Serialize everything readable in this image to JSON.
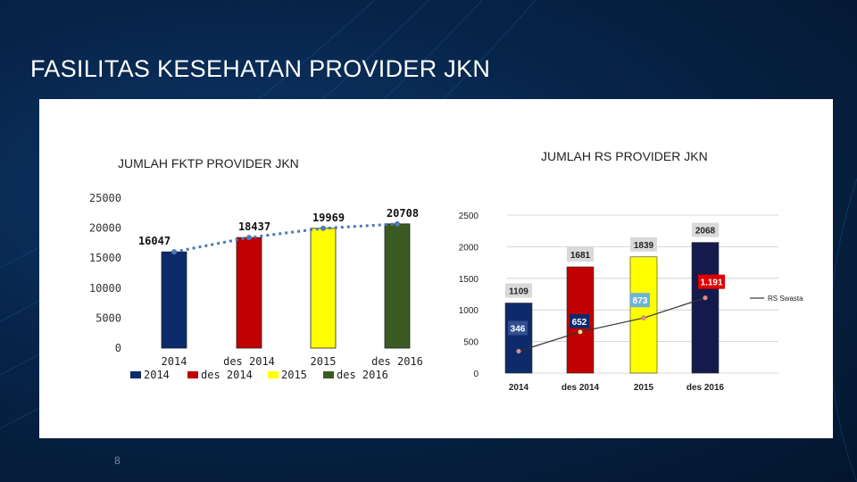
{
  "slide": {
    "title": "FASILITAS KESEHATAN PROVIDER JKN",
    "page_number": "8"
  },
  "colors": {
    "navy": "#0d2a6b",
    "red": "#c00000",
    "yellow": "#ffff00",
    "green": "#3b5a22",
    "dark_navy": "#151a4d",
    "trend_dash": "#4a79b7",
    "label_gray": "#d9d9d9",
    "label_red": "#e00000",
    "label_cyan": "#6fb3d3",
    "label_blue": "#2f4f8f"
  },
  "chart_data": [
    {
      "type": "bar",
      "title": "JUMLAH FKTP PROVIDER JKN",
      "categories": [
        "2014",
        "des 2014",
        "2015",
        "des 2016"
      ],
      "values": [
        16047,
        18437,
        19969,
        20708
      ],
      "data_labels": [
        "16047",
        "18437",
        "19969",
        "20708"
      ],
      "ylim": [
        0,
        25000
      ],
      "yticks": [
        "0",
        "5000",
        "10000",
        "15000",
        "20000",
        "25000"
      ],
      "grid": false,
      "legend_position": "bottom",
      "legend": [
        "2014",
        "des 2014",
        "2015",
        "des 2016"
      ],
      "trend_line": "dashed"
    },
    {
      "type": "bar",
      "title": "JUMLAH RS PROVIDER JKN",
      "categories": [
        "2014",
        "des 2014",
        "2015",
        "des 2016"
      ],
      "values": [
        1109,
        1681,
        1839,
        2068
      ],
      "data_labels": [
        "1109",
        "1681",
        "1839",
        "2068"
      ],
      "ylim": [
        0,
        2500
      ],
      "yticks": [
        "0",
        "500",
        "1000",
        "1500",
        "2000",
        "2500"
      ],
      "grid": true,
      "legend_position": "right",
      "series": [
        {
          "name": "RS Swasta",
          "values": [
            346,
            652,
            873,
            1191
          ],
          "data_labels": [
            "346",
            "652",
            "873",
            "1.191"
          ]
        }
      ]
    }
  ]
}
